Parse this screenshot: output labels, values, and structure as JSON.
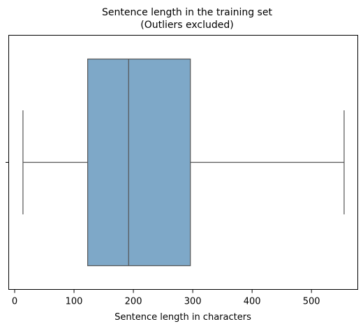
{
  "chart_data": {
    "type": "boxplot",
    "title": "Sentence length in the training set",
    "subtitle": "(Outliers excluded)",
    "xlabel": "Sentence length in characters",
    "ylabel": "",
    "xlim": [
      -10,
      578
    ],
    "xticks": [
      0,
      100,
      200,
      300,
      400,
      500
    ],
    "grid": false,
    "orientation": "horizontal",
    "box": {
      "whisker_low": 14,
      "q1": 123,
      "median": 192,
      "q3": 296,
      "whisker_high": 555
    },
    "colors": {
      "box_fill": "#7ea8c8",
      "lines": "#555555",
      "axes": "#000000"
    }
  }
}
